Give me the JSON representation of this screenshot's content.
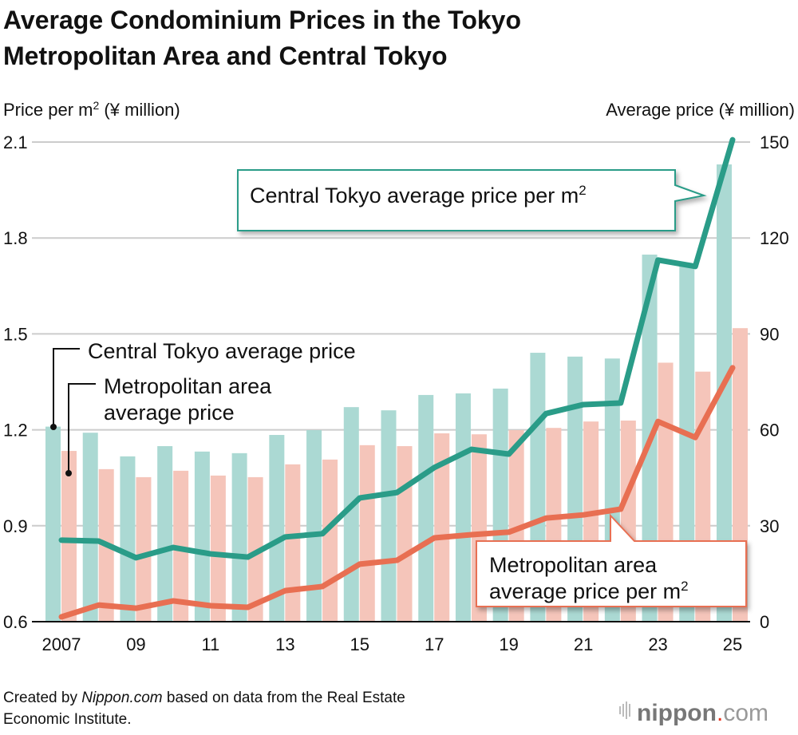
{
  "title": [
    "Average Condominium Prices in the Tokyo",
    "Metropolitan Area and Central Tokyo"
  ],
  "footer": {
    "line1_pre": "Created by ",
    "line1_em": "Nippon.com",
    "line1_post": " based on data from the Real Estate",
    "line2": "Economic Institute."
  },
  "logo": {
    "name": "nippon",
    "suffix": ".com",
    "dot_color": "#e8331c"
  },
  "colors": {
    "central_bar": "#abd9d3",
    "metro_bar": "#f5c5ba",
    "central_line": "#2a9c88",
    "metro_line": "#e86f52"
  },
  "chart_data": {
    "type": "bar+line",
    "title": "Average Condominium Prices in the Tokyo Metropolitan Area and Central Tokyo",
    "x": [
      2007,
      2008,
      2009,
      2010,
      2011,
      2012,
      2013,
      2014,
      2015,
      2016,
      2017,
      2018,
      2019,
      2020,
      2021,
      2022,
      2023,
      2024,
      2025
    ],
    "x_tick_labels": [
      "2007",
      "09",
      "11",
      "13",
      "15",
      "17",
      "19",
      "21",
      "23",
      "25"
    ],
    "y_left": {
      "label": "Price per m",
      "label_sup": "2",
      "label_rest": " (¥ million)",
      "lim": [
        0.6,
        2.1
      ],
      "ticks": [
        "0.6",
        "0.9",
        "1.2",
        "1.5",
        "1.8",
        "2.1"
      ]
    },
    "y_right": {
      "label": "Average price (¥ million)",
      "lim": [
        0,
        150
      ],
      "ticks": [
        "0",
        "30",
        "60",
        "90",
        "120",
        "150"
      ]
    },
    "grid": true,
    "series": [
      {
        "name": "Central Tokyo average price",
        "type": "bar",
        "axis": "right",
        "values": [
          61,
          59.1,
          51.7,
          54.9,
          53.2,
          52.7,
          58.4,
          59.9,
          67.1,
          66.1,
          70.9,
          71.4,
          72.9,
          84.1,
          82.9,
          82.3,
          114.8,
          111.8,
          143
        ]
      },
      {
        "name": "Metropolitan area average price",
        "name_lines": [
          "Metropolitan area",
          "average price"
        ],
        "type": "bar",
        "axis": "right",
        "values": [
          53.4,
          47.7,
          45.2,
          47.2,
          45.7,
          45.2,
          49.2,
          50.7,
          55.2,
          54.9,
          58.9,
          58.6,
          59.9,
          60.6,
          62.6,
          62.9,
          81.0,
          78.2,
          91.8
        ]
      },
      {
        "name": "Central Tokyo average price per m²",
        "label_main": "Central Tokyo average price per m",
        "label_sup": "2",
        "type": "line",
        "axis": "left",
        "values": [
          0.855,
          0.852,
          0.8,
          0.832,
          0.812,
          0.802,
          0.865,
          0.875,
          0.987,
          1.004,
          1.082,
          1.139,
          1.124,
          1.251,
          1.279,
          1.284,
          1.731,
          1.711,
          2.107
        ]
      },
      {
        "name": "Metropolitan area average price per m²",
        "label_lines": [
          "Metropolitan area",
          "average price per m"
        ],
        "label_sup": "2",
        "type": "line",
        "axis": "left",
        "values": [
          0.615,
          0.652,
          0.642,
          0.665,
          0.65,
          0.645,
          0.697,
          0.71,
          0.78,
          0.792,
          0.862,
          0.872,
          0.88,
          0.924,
          0.934,
          0.952,
          1.226,
          1.176,
          1.394
        ]
      }
    ]
  }
}
